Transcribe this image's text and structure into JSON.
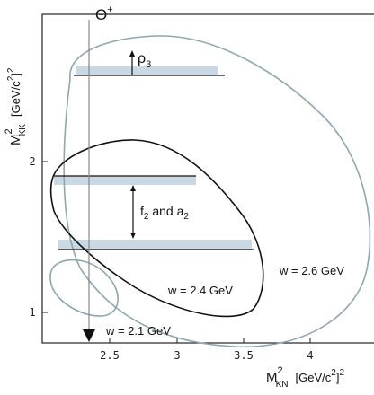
{
  "labels": {
    "theta": "Θ",
    "theta_sup": "+",
    "rho": "ρ",
    "rho_sub": "3",
    "f2a2": {
      "f": "f",
      "f_sub": "2",
      "and": " and a",
      "a_sub": "2"
    },
    "w21": "w = 2.1 GeV",
    "w24": "w = 2.4 GeV",
    "w26": "w = 2.6 GeV"
  },
  "axes": {
    "xlabel": {
      "M": "M",
      "sup": "2",
      "sub": "KN",
      "unit": "[GeV/c",
      "unit_sup": "2",
      "unit_end": "]",
      "unit_end_sup": "2"
    },
    "ylabel": {
      "M": "M",
      "sup": "2",
      "sub": "KK",
      "unit": "[GeV/c",
      "unit_sup": "2",
      "unit_end": "]",
      "unit_end_sup": "2"
    },
    "xticks": [
      "2.5",
      "3",
      "3.5",
      "4"
    ],
    "yticks": [
      "1",
      "2"
    ]
  },
  "colors": {
    "band": "#c9d8e2",
    "gray_curve": "#8fa7ae",
    "black": "#111111"
  }
}
